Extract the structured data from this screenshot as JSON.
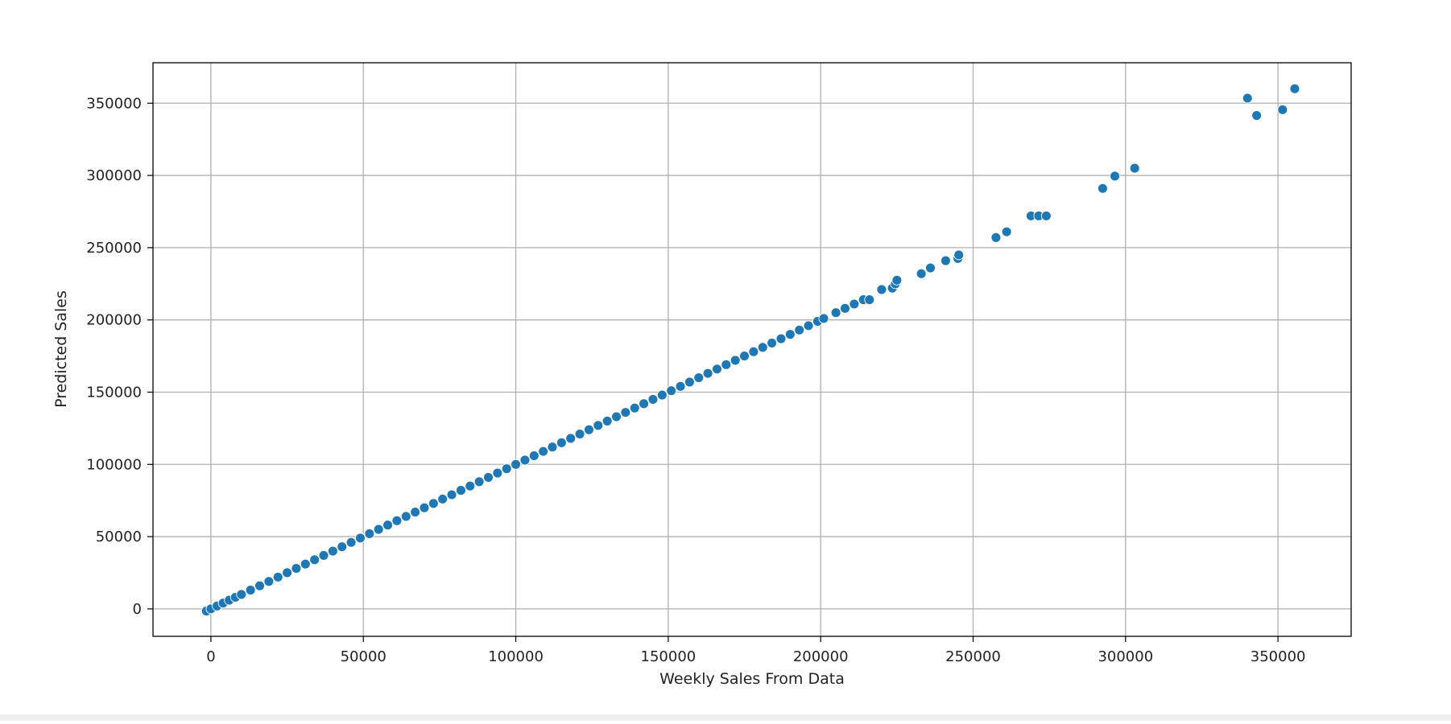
{
  "chart_data": {
    "type": "scatter",
    "title": "",
    "xlabel": "Weekly Sales From Data",
    "ylabel": "Predicted Sales",
    "xlim": [
      -19000,
      374000
    ],
    "ylim": [
      -19000,
      378000
    ],
    "xticks": [
      0,
      50000,
      100000,
      150000,
      200000,
      250000,
      300000,
      350000
    ],
    "yticks": [
      0,
      50000,
      100000,
      150000,
      200000,
      250000,
      300000,
      350000
    ],
    "x_tick_labels": [
      "0",
      "50000",
      "100000",
      "150000",
      "200000",
      "250000",
      "300000",
      "350000"
    ],
    "y_tick_labels": [
      "0",
      "50000",
      "100000",
      "150000",
      "200000",
      "250000",
      "300000",
      "350000"
    ],
    "grid": true,
    "legend": "none",
    "series": [
      {
        "color": "#1f77b4",
        "x": [
          -1500,
          0,
          2000,
          4000,
          6000,
          8000,
          10000,
          13000,
          16000,
          19000,
          22000,
          25000,
          28000,
          31000,
          34000,
          37000,
          40000,
          43000,
          46000,
          49000,
          52000,
          55000,
          58000,
          61000,
          64000,
          67000,
          70000,
          73000,
          76000,
          79000,
          82000,
          85000,
          88000,
          91000,
          94000,
          97000,
          100000,
          103000,
          106000,
          109000,
          112000,
          115000,
          118000,
          121000,
          124000,
          127000,
          130000,
          133000,
          136000,
          139000,
          142000,
          145000,
          148000,
          151000,
          154000,
          157000,
          160000,
          163000,
          166000,
          169000,
          172000,
          175000,
          178000,
          181000,
          184000,
          187000,
          190000,
          193000,
          196000,
          199000,
          201000,
          205000,
          208000,
          211000,
          214000,
          216000,
          220000,
          223500,
          224500,
          225000,
          233000,
          236000,
          241000,
          245000,
          245300,
          257500,
          261000,
          269000,
          271500,
          274000,
          292500,
          296500,
          303000,
          340000,
          343000,
          351500,
          355500
        ],
        "y": [
          -1500,
          0,
          2000,
          4000,
          6000,
          8000,
          10000,
          13000,
          16000,
          19000,
          22000,
          25000,
          28000,
          31000,
          34000,
          37000,
          40000,
          43000,
          46000,
          49000,
          52000,
          55000,
          58000,
          61000,
          64000,
          67000,
          70000,
          73000,
          76000,
          79000,
          82000,
          85000,
          88000,
          91000,
          94000,
          97000,
          100000,
          103000,
          106000,
          109000,
          112000,
          115000,
          118000,
          121000,
          124000,
          127000,
          130000,
          133000,
          136000,
          139000,
          142000,
          145000,
          148000,
          151000,
          154000,
          157000,
          160000,
          163000,
          166000,
          169000,
          172000,
          175000,
          178000,
          181000,
          184000,
          187000,
          190000,
          193000,
          196000,
          199000,
          201000,
          205000,
          208000,
          211000,
          214000,
          214000,
          221000,
          222000,
          225000,
          227500,
          232000,
          236000,
          241000,
          242500,
          245000,
          257000,
          261000,
          272000,
          272000,
          272000,
          291000,
          299500,
          305000,
          353500,
          341500,
          345500,
          360000
        ]
      }
    ]
  }
}
